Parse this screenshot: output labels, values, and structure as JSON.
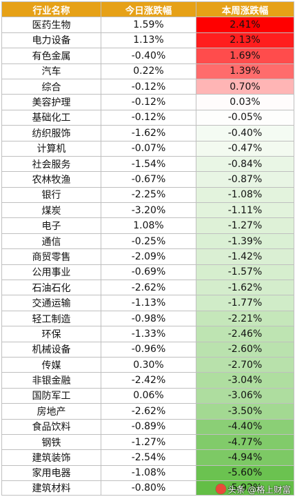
{
  "chart_data": {
    "type": "table",
    "columns": [
      "行业名称",
      "今日涨跌幅",
      "本周涨跌幅"
    ],
    "rows": [
      [
        "医药生物",
        "1.59%",
        "2.41%"
      ],
      [
        "电力设备",
        "1.13%",
        "2.13%"
      ],
      [
        "有色金属",
        "-0.40%",
        "1.69%"
      ],
      [
        "汽车",
        "0.22%",
        "1.39%"
      ],
      [
        "综合",
        "-0.12%",
        "0.70%"
      ],
      [
        "美容护理",
        "-0.12%",
        "0.03%"
      ],
      [
        "基础化工",
        "-0.12%",
        "-0.05%"
      ],
      [
        "纺织服饰",
        "-1.62%",
        "-0.40%"
      ],
      [
        "计算机",
        "-0.07%",
        "-0.47%"
      ],
      [
        "社会服务",
        "-1.54%",
        "-0.84%"
      ],
      [
        "农林牧渔",
        "-0.67%",
        "-0.87%"
      ],
      [
        "银行",
        "-2.25%",
        "-1.08%"
      ],
      [
        "煤炭",
        "-3.20%",
        "-1.11%"
      ],
      [
        "电子",
        "1.08%",
        "-1.27%"
      ],
      [
        "通信",
        "-0.25%",
        "-1.39%"
      ],
      [
        "商贸零售",
        "-2.09%",
        "-1.42%"
      ],
      [
        "公用事业",
        "-0.69%",
        "-1.57%"
      ],
      [
        "石油石化",
        "-2.62%",
        "-1.62%"
      ],
      [
        "交通运输",
        "-1.13%",
        "-1.77%"
      ],
      [
        "轻工制造",
        "-0.98%",
        "-2.21%"
      ],
      [
        "环保",
        "-1.33%",
        "-2.46%"
      ],
      [
        "机械设备",
        "-0.96%",
        "-2.60%"
      ],
      [
        "传媒",
        "0.30%",
        "-2.70%"
      ],
      [
        "非银金融",
        "-2.42%",
        "-3.04%"
      ],
      [
        "国防军工",
        "0.06%",
        "-3.06%"
      ],
      [
        "房地产",
        "-2.62%",
        "-3.50%"
      ],
      [
        "食品饮料",
        "-0.89%",
        "-4.40%"
      ],
      [
        "钢铁",
        "-1.27%",
        "-4.77%"
      ],
      [
        "建筑装饰",
        "-2.54%",
        "-4.94%"
      ],
      [
        "家用电器",
        "-1.08%",
        "-5.60%"
      ],
      [
        "建筑材料",
        "-0.80%",
        "-5.92%"
      ]
    ],
    "heatmap_column": 2,
    "colors": {
      "header_bg": "#e6a117",
      "header_text": "#ffffff",
      "positive_max": "#ff0000",
      "negative_max": "#63be46",
      "neutral": "#ffffff"
    }
  },
  "watermark": {
    "text": "头条 @格上财富"
  }
}
